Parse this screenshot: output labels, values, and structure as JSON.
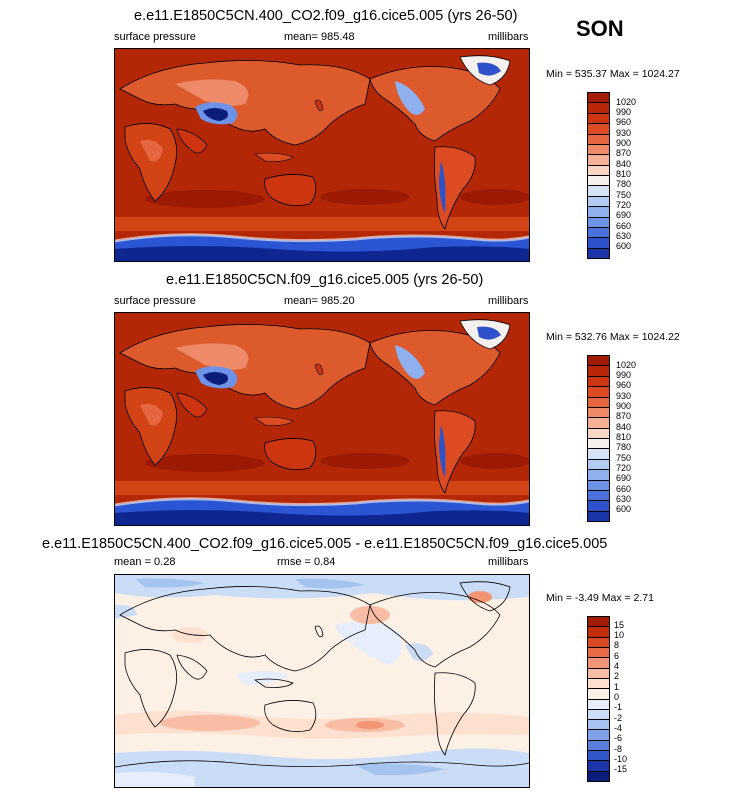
{
  "season": "SON",
  "panels": [
    {
      "title": "e.e11.E1850C5CN.400_CO2.f09_g16.cice5.005 (yrs 26-50)",
      "left_label": "surface pressure",
      "center_label": "mean= 985.48",
      "right_label": "millibars",
      "minmax": "Min = 535.37 Max = 1024.27",
      "colorbar_labels": [
        "1020",
        "990",
        "960",
        "930",
        "900",
        "870",
        "840",
        "810",
        "780",
        "750",
        "720",
        "690",
        "660",
        "630",
        "600"
      ]
    },
    {
      "title": "e.e11.E1850C5CN.f09_g16.cice5.005 (yrs 26-50)",
      "left_label": "surface pressure",
      "center_label": "mean= 985.20",
      "right_label": "millibars",
      "minmax": "Min = 532.76 Max = 1024.22",
      "colorbar_labels": [
        "1020",
        "990",
        "960",
        "930",
        "900",
        "870",
        "840",
        "810",
        "780",
        "750",
        "720",
        "690",
        "660",
        "630",
        "600"
      ]
    },
    {
      "title": "e.e11.E1850C5CN.400_CO2.f09_g16.cice5.005 - e.e11.E1850C5CN.f09_g16.cice5.005",
      "left_label": "mean =  0.28",
      "center_label": "rmse =   0.84",
      "right_label": "millibars",
      "minmax": "Min =  -3.49 Max =  2.71",
      "colorbar_labels": [
        "15",
        "10",
        "8",
        "6",
        "4",
        "2",
        "1",
        "0",
        "-1",
        "-2",
        "-4",
        "-6",
        "-8",
        "-10",
        "-15"
      ]
    }
  ],
  "colors": {
    "abs_scale": [
      "#a11b05",
      "#b82507",
      "#cc3510",
      "#dc4b22",
      "#e66640",
      "#ee8a68",
      "#f5b096",
      "#fad6c5",
      "#f6f0ee",
      "#d6e3f7",
      "#b2ccf3",
      "#8fb0ee",
      "#6d93e8",
      "#4a72dc",
      "#2d52cb",
      "#1b36a8",
      "#0a1d78"
    ],
    "diff_scale": [
      "#a11b05",
      "#c22e0a",
      "#da4a22",
      "#e86b45",
      "#f19574",
      "#f8bda4",
      "#fde0d0",
      "#fdf1e6",
      "#e6eefb",
      "#cadcf6",
      "#a6c3f0",
      "#7fa3e8",
      "#5a80de",
      "#3257c9",
      "#1b36a8",
      "#0a1d78"
    ],
    "land_outline": "#000000"
  }
}
